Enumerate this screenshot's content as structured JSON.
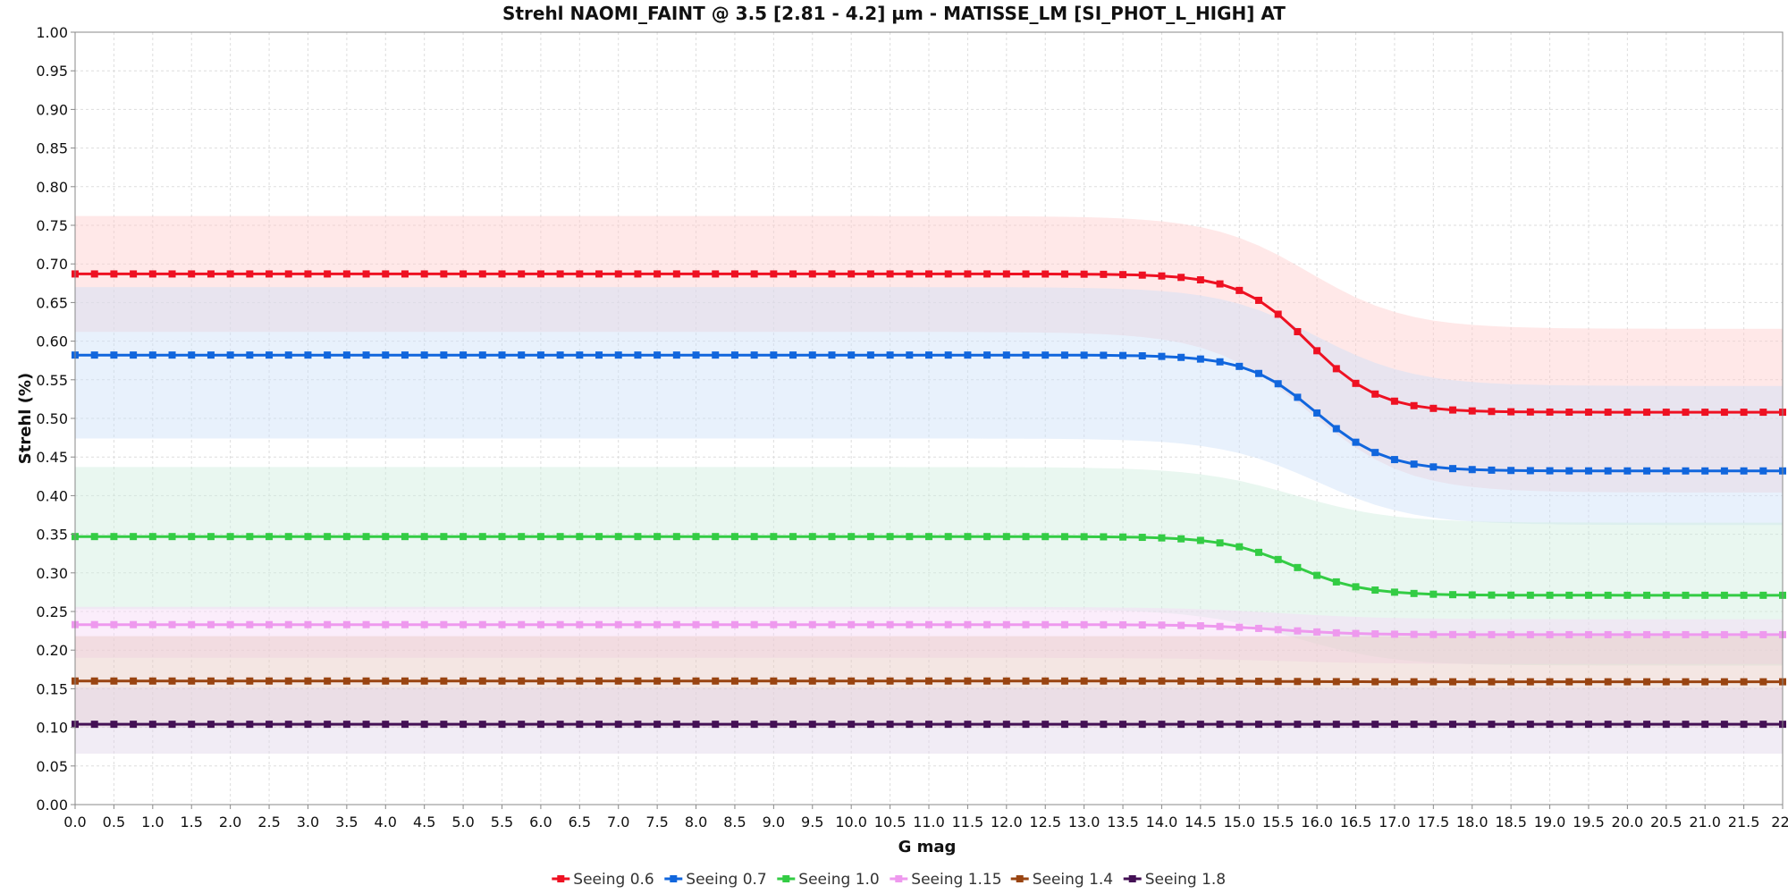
{
  "chart_data": {
    "type": "line",
    "title": "Strehl NAOMI_FAINT @ 3.5 [2.81 - 4.2] µm - MATISSE_LM [SI_PHOT_L_HIGH] AT",
    "xlabel": "G mag",
    "ylabel": "Strehl (%)",
    "xlim": [
      0.0,
      22.0
    ],
    "ylim": [
      0.0,
      1.0
    ],
    "x_step": 0.25,
    "x_ticks": [
      "0.0",
      "0.5",
      "1.0",
      "1.5",
      "2.0",
      "2.5",
      "3.0",
      "3.5",
      "4.0",
      "4.5",
      "5.0",
      "5.5",
      "6.0",
      "6.5",
      "7.0",
      "7.5",
      "8.0",
      "8.5",
      "9.0",
      "9.5",
      "10.0",
      "10.5",
      "11.0",
      "11.5",
      "12.0",
      "12.5",
      "13.0",
      "13.5",
      "14.0",
      "14.5",
      "15.0",
      "15.5",
      "16.0",
      "16.5",
      "17.0",
      "17.5",
      "18.0",
      "18.5",
      "19.0",
      "19.5",
      "20.0",
      "20.5",
      "21.0",
      "21.5",
      "22."
    ],
    "y_ticks": [
      "0.00",
      "0.05",
      "0.10",
      "0.15",
      "0.20",
      "0.25",
      "0.30",
      "0.35",
      "0.40",
      "0.45",
      "0.50",
      "0.55",
      "0.60",
      "0.65",
      "0.70",
      "0.75",
      "0.80",
      "0.85",
      "0.90",
      "0.95",
      "1.00"
    ],
    "grid": true,
    "legend_position": "bottom",
    "series": [
      {
        "name": "Seeing 0.6",
        "color": "#ee1122",
        "band_color": "#ffcccc",
        "bright": 0.687,
        "faint": 0.508,
        "band_bright": [
          0.612,
          0.762
        ],
        "band_faint": [
          0.404,
          0.616
        ],
        "mid": 15.9,
        "width": 0.45
      },
      {
        "name": "Seeing 0.7",
        "color": "#1166dd",
        "band_color": "#cce0f8",
        "bright": 0.582,
        "faint": 0.432,
        "band_bright": [
          0.474,
          0.67
        ],
        "band_faint": [
          0.362,
          0.542
        ],
        "mid": 16.0,
        "width": 0.45
      },
      {
        "name": "Seeing 1.0",
        "color": "#33cc44",
        "band_color": "#cfeedd",
        "bright": 0.347,
        "faint": 0.271,
        "band_bright": [
          0.253,
          0.437
        ],
        "band_faint": [
          0.18,
          0.365
        ],
        "mid": 15.7,
        "width": 0.45
      },
      {
        "name": "Seeing 1.15",
        "color": "#ee99ee",
        "band_color": "#f6d6f6",
        "bright": 0.233,
        "faint": 0.22,
        "band_bright": [
          0.19,
          0.256
        ],
        "band_faint": [
          0.182,
          0.24
        ],
        "mid": 15.5,
        "width": 0.5
      },
      {
        "name": "Seeing 1.4",
        "color": "#994411",
        "band_color": "#e6c8c0",
        "bright": 0.16,
        "faint": 0.159,
        "band_bright": [
          0.1,
          0.218
        ],
        "band_faint": [
          0.1,
          0.218
        ],
        "mid": 15.5,
        "width": 0.5
      },
      {
        "name": "Seeing 1.8",
        "color": "#441155",
        "band_color": "#e0d4e8",
        "bright": 0.104,
        "faint": 0.104,
        "band_bright": [
          0.066,
          0.152
        ],
        "band_faint": [
          0.066,
          0.152
        ],
        "mid": 15.5,
        "width": 0.5
      }
    ]
  }
}
